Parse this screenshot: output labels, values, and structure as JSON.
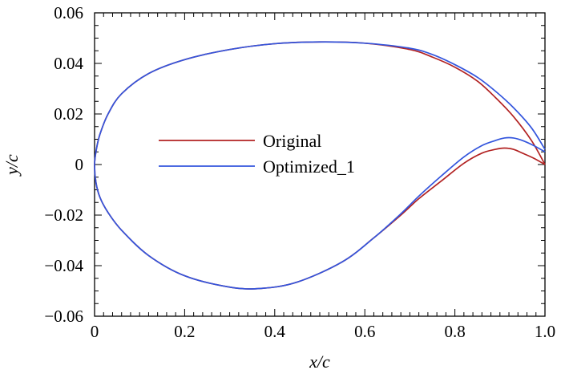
{
  "chart_data": {
    "type": "line",
    "xlabel": "x/c",
    "ylabel": "y/c",
    "xlim": [
      0,
      1.0
    ],
    "ylim": [
      -0.06,
      0.06
    ],
    "x_ticks": [
      0,
      0.2,
      0.4,
      0.6,
      0.8,
      1.0
    ],
    "x_tick_labels": [
      "0",
      "0.2",
      "0.4",
      "0.6",
      "0.8",
      "1.0"
    ],
    "y_ticks": [
      -0.06,
      -0.04,
      -0.02,
      0,
      0.02,
      0.04,
      0.06
    ],
    "y_tick_labels": [
      "−0.06",
      "−0.04",
      "−0.02",
      "0",
      "0.02",
      "0.04",
      "0.06"
    ],
    "grid": false,
    "legend_position": "center-left",
    "series": [
      {
        "name": "Original",
        "color": "#b22222",
        "x": [
          1.0,
          0.97,
          0.93,
          0.89,
          0.85,
          0.8,
          0.75,
          0.7,
          0.6,
          0.5,
          0.4,
          0.3,
          0.2,
          0.12,
          0.06,
          0.03,
          0.012,
          0.004,
          0.0,
          0.003,
          0.012,
          0.03,
          0.06,
          0.12,
          0.2,
          0.3,
          0.37,
          0.45,
          0.55,
          0.62,
          0.68,
          0.72,
          0.77,
          0.82,
          0.86,
          0.89,
          0.91,
          0.93,
          0.95,
          0.975,
          1.0
        ],
        "y": [
          0.0,
          0.0095,
          0.019,
          0.0265,
          0.033,
          0.0385,
          0.0425,
          0.0455,
          0.048,
          0.0485,
          0.0478,
          0.0455,
          0.0415,
          0.036,
          0.028,
          0.02,
          0.012,
          0.006,
          0.0,
          -0.007,
          -0.013,
          -0.019,
          -0.026,
          -0.036,
          -0.044,
          -0.0485,
          -0.049,
          -0.0465,
          -0.0385,
          -0.029,
          -0.02,
          -0.0135,
          -0.0065,
          0.0005,
          0.0045,
          0.006,
          0.0065,
          0.006,
          0.0045,
          0.0025,
          0.0
        ]
      },
      {
        "name": "Optimized_1",
        "color": "#3355dd",
        "x": [
          1.0,
          0.97,
          0.93,
          0.89,
          0.85,
          0.8,
          0.75,
          0.7,
          0.6,
          0.5,
          0.4,
          0.3,
          0.2,
          0.12,
          0.06,
          0.03,
          0.012,
          0.004,
          0.0,
          0.003,
          0.012,
          0.03,
          0.06,
          0.12,
          0.2,
          0.3,
          0.37,
          0.45,
          0.55,
          0.62,
          0.68,
          0.72,
          0.77,
          0.82,
          0.86,
          0.89,
          0.91,
          0.93,
          0.95,
          0.975,
          1.0
        ],
        "y": [
          0.006,
          0.0145,
          0.0225,
          0.029,
          0.0345,
          0.0395,
          0.0435,
          0.046,
          0.048,
          0.0485,
          0.0478,
          0.0455,
          0.0415,
          0.036,
          0.028,
          0.02,
          0.012,
          0.006,
          0.0,
          -0.007,
          -0.013,
          -0.019,
          -0.026,
          -0.036,
          -0.044,
          -0.0485,
          -0.049,
          -0.0465,
          -0.0385,
          -0.029,
          -0.0195,
          -0.0125,
          -0.0045,
          0.003,
          0.0075,
          0.0095,
          0.0105,
          0.0105,
          0.0095,
          0.0075,
          0.005
        ]
      }
    ]
  }
}
